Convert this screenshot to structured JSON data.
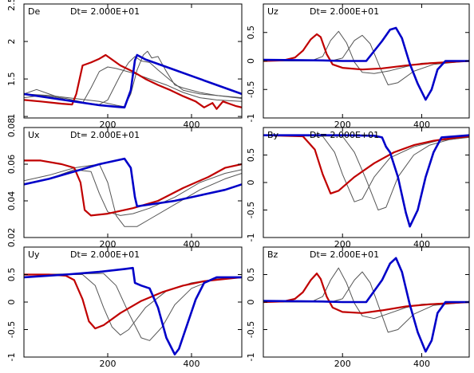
{
  "colors": {
    "red": "#c00000",
    "blue": "#0000c8",
    "gray": "#555555",
    "frame": "#000000"
  },
  "chart_data": [
    {
      "type": "line",
      "label": "De",
      "dt_text": "Dt= 2.000E+01",
      "xlim": [
        0,
        520
      ],
      "ylim": [
        0.98,
        2.5
      ],
      "xticks": [
        200,
        400
      ],
      "xtick_labels": [
        "200",
        "400"
      ],
      "yticks": [
        1,
        1.5,
        2,
        2.5
      ],
      "ytick_labels": [
        "1",
        "1.5",
        "2",
        "2.5"
      ],
      "grid": false,
      "series": [
        {
          "color": "red",
          "x": [
            0,
            40,
            90,
            115,
            125,
            140,
            160,
            180,
            195,
            210,
            230,
            260,
            290,
            320,
            350,
            380,
            410,
            430,
            450,
            460,
            475,
            490,
            505,
            520
          ],
          "y": [
            1.22,
            1.2,
            1.17,
            1.16,
            1.3,
            1.68,
            1.72,
            1.77,
            1.82,
            1.76,
            1.68,
            1.6,
            1.5,
            1.42,
            1.35,
            1.27,
            1.2,
            1.12,
            1.18,
            1.1,
            1.2,
            1.17,
            1.14,
            1.12
          ]
        },
        {
          "color": "blue",
          "x": [
            0,
            60,
            120,
            180,
            220,
            240,
            255,
            265,
            270,
            290,
            350,
            410,
            460,
            520
          ],
          "y": [
            1.3,
            1.25,
            1.2,
            1.15,
            1.13,
            1.12,
            1.35,
            1.75,
            1.82,
            1.76,
            1.64,
            1.52,
            1.42,
            1.3
          ]
        },
        {
          "color": "gray",
          "x": [
            0,
            30,
            60,
            100,
            140,
            160,
            180,
            200,
            220,
            260,
            300,
            340,
            380,
            420,
            460,
            520
          ],
          "y": [
            1.3,
            1.36,
            1.3,
            1.22,
            1.18,
            1.38,
            1.6,
            1.66,
            1.64,
            1.58,
            1.5,
            1.42,
            1.32,
            1.25,
            1.22,
            1.2
          ]
        },
        {
          "color": "gray",
          "x": [
            0,
            40,
            100,
            150,
            180,
            200,
            230,
            250,
            265,
            280,
            300,
            320,
            350,
            380,
            420,
            460,
            520
          ],
          "y": [
            1.25,
            1.28,
            1.24,
            1.18,
            1.16,
            1.22,
            1.55,
            1.72,
            1.8,
            1.74,
            1.72,
            1.62,
            1.48,
            1.35,
            1.3,
            1.28,
            1.24
          ]
        },
        {
          "color": "gray",
          "x": [
            0,
            60,
            120,
            180,
            220,
            240,
            255,
            270,
            285,
            295,
            305,
            320,
            340,
            360,
            380,
            420,
            460,
            520
          ],
          "y": [
            1.3,
            1.28,
            1.24,
            1.2,
            1.15,
            1.13,
            1.3,
            1.62,
            1.82,
            1.87,
            1.78,
            1.8,
            1.6,
            1.42,
            1.38,
            1.32,
            1.28,
            1.25
          ]
        }
      ]
    },
    {
      "type": "line",
      "label": "Uz",
      "dt_text": "Dt= 2.000E+01",
      "xlim": [
        0,
        520
      ],
      "ylim": [
        -1.0,
        1.0
      ],
      "xticks": [
        200,
        400
      ],
      "xtick_labels": [
        "200",
        "400"
      ],
      "yticks": [
        -1,
        -0.5,
        0,
        0.5
      ],
      "ytick_labels": [
        "-1",
        "-0.5",
        "0",
        "0.5"
      ],
      "grid": false,
      "series": [
        {
          "color": "red",
          "x": [
            0,
            50,
            80,
            100,
            120,
            135,
            145,
            160,
            175,
            200,
            250,
            300,
            360,
            420,
            470,
            520
          ],
          "y": [
            0,
            0.01,
            0.06,
            0.18,
            0.38,
            0.47,
            0.42,
            0.12,
            -0.06,
            -0.12,
            -0.15,
            -0.13,
            -0.08,
            -0.04,
            -0.02,
            0
          ]
        },
        {
          "color": "gray",
          "x": [
            0,
            120,
            150,
            170,
            190,
            210,
            230,
            250,
            280,
            320,
            360,
            400,
            520
          ],
          "y": [
            0,
            0,
            0.08,
            0.36,
            0.52,
            0.32,
            -0.02,
            -0.2,
            -0.22,
            -0.17,
            -0.1,
            -0.04,
            0
          ]
        },
        {
          "color": "gray",
          "x": [
            0,
            170,
            200,
            230,
            250,
            270,
            295,
            315,
            340,
            380,
            430,
            520
          ],
          "y": [
            0,
            0,
            0.05,
            0.36,
            0.45,
            0.3,
            -0.12,
            -0.42,
            -0.38,
            -0.18,
            -0.06,
            0
          ]
        },
        {
          "color": "blue",
          "x": [
            0,
            150,
            200,
            260,
            300,
            320,
            335,
            350,
            370,
            390,
            410,
            425,
            440,
            460,
            520
          ],
          "y": [
            0.02,
            0.01,
            0.0,
            0.0,
            0.35,
            0.55,
            0.58,
            0.4,
            -0.05,
            -0.4,
            -0.68,
            -0.5,
            -0.15,
            0.0,
            0.0
          ]
        }
      ]
    },
    {
      "type": "line",
      "label": "Ux",
      "dt_text": "Dt= 2.000E+01",
      "xlim": [
        0,
        520
      ],
      "ylim": [
        0.02,
        0.08
      ],
      "xticks": [
        200,
        400
      ],
      "xtick_labels": [
        "200",
        "400"
      ],
      "yticks": [
        0.02,
        0.04,
        0.06,
        0.08
      ],
      "ytick_labels": [
        "0.02",
        "0.04",
        "0.06",
        "0.08"
      ],
      "grid": false,
      "series": [
        {
          "color": "red",
          "x": [
            0,
            40,
            90,
            120,
            135,
            145,
            160,
            200,
            260,
            320,
            380,
            440,
            480,
            520
          ],
          "y": [
            0.062,
            0.062,
            0.06,
            0.058,
            0.05,
            0.035,
            0.032,
            0.033,
            0.036,
            0.04,
            0.047,
            0.053,
            0.058,
            0.06
          ]
        },
        {
          "color": "blue",
          "x": [
            0,
            60,
            120,
            180,
            240,
            255,
            265,
            270,
            300,
            360,
            420,
            480,
            520
          ],
          "y": [
            0.049,
            0.052,
            0.056,
            0.06,
            0.063,
            0.058,
            0.042,
            0.037,
            0.038,
            0.04,
            0.043,
            0.046,
            0.049
          ]
        },
        {
          "color": "gray",
          "x": [
            0,
            60,
            120,
            160,
            180,
            200,
            230,
            260,
            300,
            360,
            420,
            480,
            520
          ],
          "y": [
            0.049,
            0.052,
            0.057,
            0.056,
            0.044,
            0.034,
            0.032,
            0.033,
            0.036,
            0.042,
            0.05,
            0.055,
            0.057
          ]
        },
        {
          "color": "gray",
          "x": [
            0,
            60,
            120,
            180,
            200,
            220,
            240,
            270,
            300,
            360,
            420,
            480,
            520
          ],
          "y": [
            0.051,
            0.054,
            0.058,
            0.06,
            0.05,
            0.032,
            0.026,
            0.026,
            0.03,
            0.038,
            0.046,
            0.052,
            0.055
          ]
        }
      ]
    },
    {
      "type": "line",
      "label": "By",
      "dt_text": "Dt= 2.000E+01",
      "xlim": [
        0,
        520
      ],
      "ylim": [
        -1.0,
        1.0
      ],
      "xticks": [
        200,
        400
      ],
      "xtick_labels": [
        "200",
        "400"
      ],
      "yticks": [
        -1,
        -0.5,
        0,
        0.5
      ],
      "ytick_labels": [
        "-1",
        "-0.5",
        "0",
        "0.5"
      ],
      "grid": false,
      "series": [
        {
          "color": "red",
          "x": [
            0,
            100,
            130,
            150,
            170,
            190,
            230,
            280,
            330,
            380,
            430,
            480,
            520
          ],
          "y": [
            0.86,
            0.84,
            0.6,
            0.15,
            -0.2,
            -0.15,
            0.1,
            0.35,
            0.55,
            0.68,
            0.76,
            0.81,
            0.84
          ]
        },
        {
          "color": "gray",
          "x": [
            0,
            150,
            180,
            200,
            230,
            250,
            280,
            320,
            380,
            440,
            520
          ],
          "y": [
            0.86,
            0.84,
            0.55,
            0.15,
            -0.35,
            -0.3,
            0.1,
            0.45,
            0.65,
            0.76,
            0.82
          ]
        },
        {
          "color": "gray",
          "x": [
            0,
            200,
            230,
            260,
            290,
            310,
            340,
            380,
            420,
            470,
            520
          ],
          "y": [
            0.86,
            0.84,
            0.55,
            0.05,
            -0.5,
            -0.45,
            0.1,
            0.5,
            0.68,
            0.78,
            0.83
          ]
        },
        {
          "color": "blue",
          "x": [
            0,
            100,
            200,
            280,
            300,
            310,
            320,
            340,
            360,
            370,
            390,
            410,
            430,
            450,
            520
          ],
          "y": [
            0.86,
            0.86,
            0.86,
            0.85,
            0.82,
            0.65,
            0.55,
            0.1,
            -0.55,
            -0.8,
            -0.5,
            0.1,
            0.55,
            0.82,
            0.86
          ]
        }
      ]
    },
    {
      "type": "line",
      "label": "Uy",
      "dt_text": "Dt= 2.000E+01",
      "xlim": [
        0,
        520
      ],
      "ylim": [
        -1.0,
        1.0
      ],
      "xticks": [
        200,
        400
      ],
      "xtick_labels": [
        "200",
        "400"
      ],
      "yticks": [
        -1,
        -0.5,
        0,
        0.5
      ],
      "ytick_labels": [
        "-1",
        "-0.5",
        "0",
        "0.5"
      ],
      "grid": false,
      "series": [
        {
          "color": "red",
          "x": [
            0,
            60,
            100,
            120,
            140,
            155,
            170,
            190,
            230,
            280,
            330,
            380,
            430,
            480,
            520
          ],
          "y": [
            0.5,
            0.5,
            0.48,
            0.4,
            0.05,
            -0.35,
            -0.48,
            -0.42,
            -0.2,
            0.02,
            0.18,
            0.3,
            0.38,
            0.42,
            0.45
          ]
        },
        {
          "color": "gray",
          "x": [
            0,
            140,
            170,
            190,
            210,
            230,
            250,
            290,
            340,
            400,
            460,
            520
          ],
          "y": [
            0.5,
            0.5,
            0.3,
            -0.1,
            -0.45,
            -0.6,
            -0.5,
            -0.1,
            0.2,
            0.35,
            0.42,
            0.45
          ]
        },
        {
          "color": "gray",
          "x": [
            0,
            190,
            220,
            250,
            280,
            300,
            330,
            360,
            400,
            450,
            520
          ],
          "y": [
            0.5,
            0.52,
            0.3,
            -0.2,
            -0.65,
            -0.7,
            -0.45,
            -0.05,
            0.25,
            0.4,
            0.45
          ]
        },
        {
          "color": "blue",
          "x": [
            0,
            100,
            180,
            240,
            260,
            265,
            280,
            300,
            320,
            340,
            360,
            370,
            390,
            410,
            430,
            460,
            520
          ],
          "y": [
            0.45,
            0.5,
            0.55,
            0.6,
            0.62,
            0.35,
            0.3,
            0.25,
            -0.1,
            -0.65,
            -0.95,
            -0.85,
            -0.4,
            0.05,
            0.35,
            0.45,
            0.45
          ]
        }
      ]
    },
    {
      "type": "line",
      "label": "Bz",
      "dt_text": "Dt= 2.000E+01",
      "xlim": [
        0,
        520
      ],
      "ylim": [
        -1.0,
        1.0
      ],
      "xticks": [
        200,
        400
      ],
      "xtick_labels": [
        "200",
        "400"
      ],
      "yticks": [
        -1,
        -0.5,
        0,
        0.5
      ],
      "ytick_labels": [
        "-1",
        "-0.5",
        "0",
        "0.5"
      ],
      "grid": false,
      "series": [
        {
          "color": "red",
          "x": [
            0,
            50,
            80,
            100,
            120,
            135,
            145,
            160,
            175,
            200,
            250,
            300,
            360,
            420,
            470,
            520
          ],
          "y": [
            0,
            0.01,
            0.06,
            0.18,
            0.4,
            0.52,
            0.42,
            0.1,
            -0.1,
            -0.18,
            -0.2,
            -0.15,
            -0.08,
            -0.04,
            -0.02,
            0
          ]
        },
        {
          "color": "gray",
          "x": [
            0,
            120,
            150,
            170,
            190,
            210,
            230,
            250,
            280,
            320,
            360,
            400,
            520
          ],
          "y": [
            0,
            0,
            0.1,
            0.4,
            0.62,
            0.35,
            -0.02,
            -0.25,
            -0.3,
            -0.2,
            -0.1,
            -0.04,
            0
          ]
        },
        {
          "color": "gray",
          "x": [
            0,
            170,
            200,
            230,
            250,
            270,
            295,
            315,
            340,
            380,
            430,
            520
          ],
          "y": [
            0,
            0,
            0.06,
            0.4,
            0.55,
            0.35,
            -0.15,
            -0.55,
            -0.5,
            -0.22,
            -0.06,
            0
          ]
        },
        {
          "color": "blue",
          "x": [
            0,
            150,
            200,
            260,
            300,
            320,
            335,
            350,
            370,
            390,
            410,
            425,
            440,
            460,
            520
          ],
          "y": [
            0.02,
            0.01,
            0.0,
            0.0,
            0.4,
            0.7,
            0.8,
            0.55,
            -0.05,
            -0.55,
            -0.9,
            -0.7,
            -0.2,
            0.0,
            0.0
          ]
        }
      ]
    }
  ]
}
